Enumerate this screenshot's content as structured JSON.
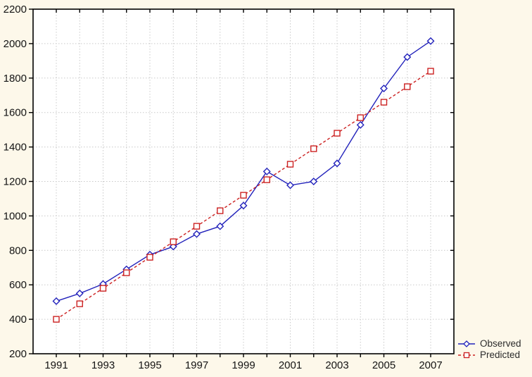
{
  "chart_data": {
    "type": "line",
    "x": [
      1991,
      1992,
      1993,
      1994,
      1995,
      1996,
      1997,
      1998,
      1999,
      2000,
      2001,
      2002,
      2003,
      2004,
      2005,
      2006,
      2007
    ],
    "series": [
      {
        "name": "Observed",
        "color": "#2222bb",
        "marker": "diamond",
        "line_style": "solid",
        "values": [
          505,
          550,
          605,
          690,
          775,
          822,
          895,
          940,
          1060,
          1258,
          1178,
          1200,
          1305,
          1528,
          1740,
          1922,
          2015
        ]
      },
      {
        "name": "Predicted",
        "color": "#cc2222",
        "marker": "square",
        "line_style": "dashed",
        "values": [
          400,
          490,
          580,
          670,
          760,
          850,
          940,
          1030,
          1120,
          1210,
          1300,
          1390,
          1480,
          1570,
          1660,
          1750,
          1840
        ]
      }
    ],
    "title": "",
    "xlabel": "",
    "ylabel": "",
    "ylim": [
      200,
      2200
    ],
    "ytick_step": 200,
    "yticks": [
      200,
      400,
      600,
      800,
      1000,
      1200,
      1400,
      1600,
      1800,
      2000,
      2200
    ],
    "xtick_labels": [
      "1991",
      "1993",
      "1995",
      "1997",
      "1999",
      "2001",
      "2003",
      "2005",
      "2007"
    ],
    "grid": "dotted",
    "legend_position": "bottom-right-outside"
  },
  "colors": {
    "background": "#fdf8ea",
    "plot_background": "#ffffff",
    "grid": "#c9c9c9",
    "frame": "#000000",
    "tick": "#000000",
    "axis_text": "#141414",
    "legend_text": "#2b2b2b"
  },
  "legend": {
    "items": [
      {
        "label": "Observed"
      },
      {
        "label": "Predicted"
      }
    ]
  }
}
